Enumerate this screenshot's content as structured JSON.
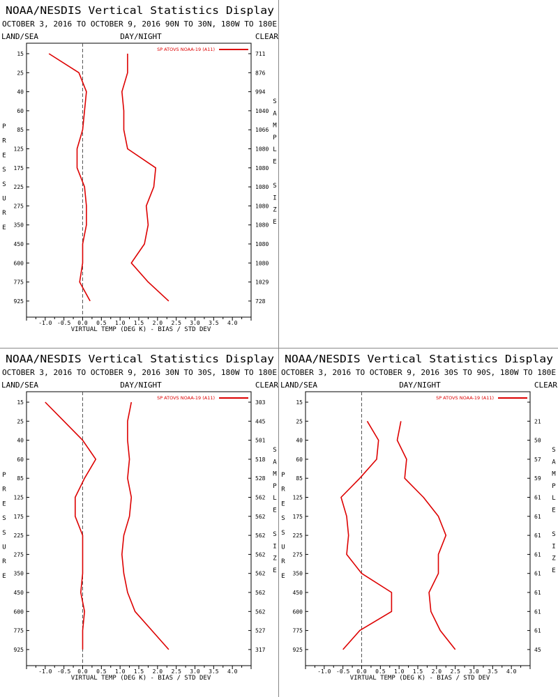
{
  "colors": {
    "series": "#dd0000",
    "axis": "#000000",
    "zero_line": "#555555"
  },
  "chart_data": [
    {
      "type": "line",
      "title": "NOAA/NESDIS Vertical Statistics Display",
      "subtitle": "OCTOBER 3, 2016 TO OCTOBER 9, 2016  90N TO 30N, 180W TO 180E",
      "left_label": "LAND/SEA",
      "center_label": "DAY/NIGHT",
      "right_label": "CLEAR",
      "legend": "SP ATOVS NOAA-19 (A11)",
      "ylabel": "PRESSURE",
      "y2label": "SAMPLE SIZE",
      "xlabel": "VIRTUAL TEMP (DEG K) - BIAS / STD DEV",
      "xlim": [
        -1.5,
        4.5
      ],
      "x_ticks": [
        "-1.0",
        "-0.5",
        "0.0",
        "0.5",
        "1.0",
        "1.5",
        "2.0",
        "2.5",
        "3.0",
        "3.5",
        "4.0"
      ],
      "levels": [
        "15",
        "25",
        "40",
        "60",
        "85",
        "125",
        "175",
        "225",
        "275",
        "350",
        "450",
        "600",
        "775",
        "925"
      ],
      "sample_sizes": [
        "711",
        "876",
        "994",
        "1040",
        "1066",
        "1080",
        "1080",
        "1080",
        "1080",
        "1080",
        "1080",
        "1080",
        "1029",
        "728"
      ],
      "series": [
        {
          "values": [
            -0.9,
            -0.1,
            0.1,
            0.05,
            0.0,
            -0.15,
            -0.15,
            0.05,
            0.1,
            0.1,
            0.0,
            0.0,
            -0.08,
            0.2
          ]
        },
        {
          "values": [
            1.2,
            1.2,
            1.05,
            1.1,
            1.1,
            1.2,
            1.95,
            1.9,
            1.7,
            1.75,
            1.65,
            1.3,
            1.75,
            2.3
          ]
        }
      ]
    },
    {
      "type": "line",
      "title": "NOAA/NESDIS Vertical Statistics Display",
      "subtitle": "OCTOBER 3, 2016 TO OCTOBER 9, 2016  30N TO 30S, 180W TO 180E",
      "left_label": "LAND/SEA",
      "center_label": "DAY/NIGHT",
      "right_label": "CLEAR",
      "legend": "SP ATOVS NOAA-19 (A11)",
      "ylabel": "PRESSURE",
      "y2label": "SAMPLE SIZE",
      "xlabel": "VIRTUAL TEMP (DEG K) - BIAS / STD DEV",
      "xlim": [
        -1.5,
        4.5
      ],
      "x_ticks": [
        "-1.0",
        "-0.5",
        "0.0",
        "0.5",
        "1.0",
        "1.5",
        "2.0",
        "2.5",
        "3.0",
        "3.5",
        "4.0"
      ],
      "levels": [
        "15",
        "25",
        "40",
        "60",
        "85",
        "125",
        "175",
        "225",
        "275",
        "350",
        "450",
        "600",
        "775",
        "925"
      ],
      "sample_sizes": [
        "303",
        "445",
        "501",
        "518",
        "528",
        "562",
        "562",
        "562",
        "562",
        "562",
        "562",
        "562",
        "527",
        "317"
      ],
      "series": [
        {
          "values": [
            -1.0,
            -0.5,
            0.0,
            0.35,
            0.05,
            -0.2,
            -0.2,
            0.0,
            0.0,
            0.0,
            -0.05,
            0.05,
            0.0,
            0.0
          ]
        },
        {
          "values": [
            1.3,
            1.2,
            1.2,
            1.25,
            1.2,
            1.3,
            1.25,
            1.1,
            1.05,
            1.1,
            1.2,
            1.4,
            1.85,
            2.3
          ]
        }
      ]
    },
    {
      "type": "line",
      "title": "NOAA/NESDIS Vertical Statistics Display",
      "subtitle": "OCTOBER 3, 2016 TO OCTOBER 9, 2016  30S TO 90S, 180W TO 180E",
      "left_label": "LAND/SEA",
      "center_label": "DAY/NIGHT",
      "right_label": "CLEAR",
      "legend": "SP ATOVS NOAA-19 (A11)",
      "ylabel": "PRESSURE",
      "y2label": "SAMPLE SIZE",
      "xlabel": "VIRTUAL TEMP (DEG K) - BIAS / STD DEV",
      "xlim": [
        -1.5,
        4.5
      ],
      "x_ticks": [
        "-1.0",
        "-0.5",
        "0.0",
        "0.5",
        "1.0",
        "1.5",
        "2.0",
        "2.5",
        "3.0",
        "3.5",
        "4.0"
      ],
      "levels": [
        "15",
        "25",
        "40",
        "60",
        "85",
        "125",
        "175",
        "225",
        "275",
        "350",
        "450",
        "600",
        "775",
        "925"
      ],
      "sample_sizes": [
        "",
        "21",
        "50",
        "57",
        "59",
        "61",
        "61",
        "61",
        "61",
        "61",
        "61",
        "61",
        "61",
        "45"
      ],
      "series": [
        {
          "values": [
            null,
            0.15,
            0.45,
            0.4,
            -0.05,
            -0.55,
            -0.4,
            -0.35,
            -0.4,
            0.0,
            0.8,
            0.8,
            -0.05,
            -0.5
          ]
        },
        {
          "values": [
            null,
            1.05,
            0.95,
            1.2,
            1.15,
            1.65,
            2.05,
            2.25,
            2.05,
            2.05,
            1.8,
            1.85,
            2.1,
            2.5
          ]
        }
      ]
    }
  ]
}
